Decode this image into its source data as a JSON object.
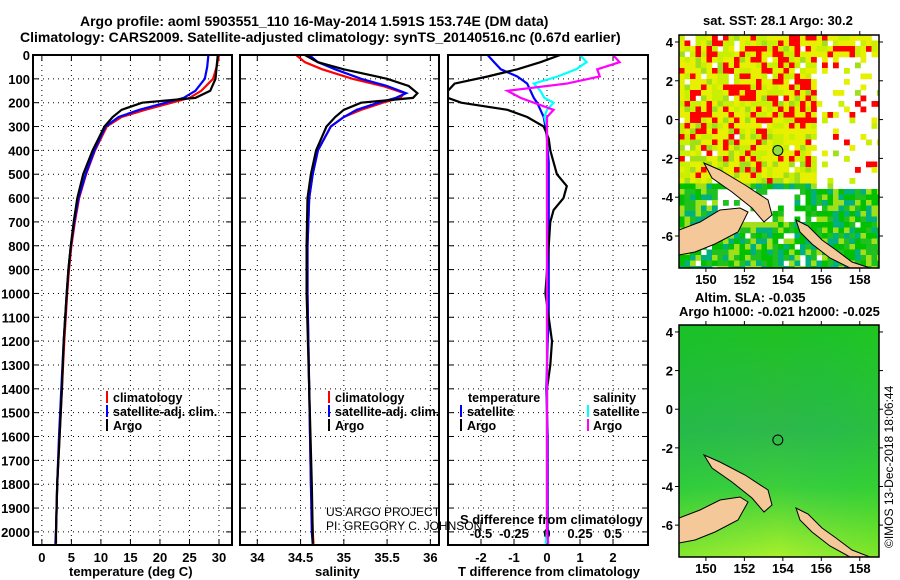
{
  "title_line1": "Argo profile: aoml 5903551_110 16-May-2014 1.591S 153.74E (DM data)",
  "title_line2": "Climatology: CARS2009. Satellite-adjusted climatology: synTS_20140516.nc (0.67d earlier)",
  "credit_project": "US ARGO PROJECT",
  "credit_pi": "PI: GREGORY C. JOHNSON",
  "imos_stamp": "©IMOS 13-Dec-2018 18:06:44",
  "colors": {
    "climatology": "#ff0000",
    "satellite": "#0000ff",
    "argo": "#000000",
    "sal_sat": "#00ffff",
    "sal_argo": "#ff00ff",
    "land": "#f5c89a"
  },
  "chart_data": [
    {
      "type": "line",
      "name": "temperature",
      "xlabel": "temperature (deg C)",
      "ylabel": "depth",
      "xlim": [
        -1.5,
        32.2
      ],
      "ylim": [
        2055,
        0
      ],
      "xticks": [
        0,
        5,
        10,
        15,
        20,
        25,
        30
      ],
      "yticks": [
        0,
        100,
        200,
        300,
        400,
        500,
        600,
        700,
        800,
        900,
        1000,
        1100,
        1200,
        1300,
        1400,
        1500,
        1600,
        1700,
        1800,
        1900,
        2000
      ],
      "legend": [
        "climatology",
        "satellite-adj. clim.",
        "Argo"
      ],
      "depth": [
        0,
        50,
        100,
        150,
        180,
        200,
        230,
        260,
        300,
        400,
        500,
        600,
        700,
        800,
        900,
        1000,
        1200,
        1400,
        1600,
        1800,
        2000,
        2050
      ],
      "series": [
        {
          "name": "climatology",
          "values": [
            30.0,
            29.6,
            29.0,
            27.0,
            25.0,
            22.0,
            17.5,
            13.5,
            11.0,
            9.0,
            7.5,
            6.3,
            5.6,
            5.0,
            4.6,
            4.3,
            3.8,
            3.4,
            3.0,
            2.6,
            2.4,
            2.3
          ]
        },
        {
          "name": "satellite-adj. clim.",
          "values": [
            28.2,
            28.0,
            27.6,
            26.0,
            24.0,
            21.0,
            16.5,
            13.0,
            10.8,
            8.9,
            7.4,
            6.2,
            5.5,
            4.9,
            4.5,
            4.2,
            3.7,
            3.3,
            2.9,
            2.6,
            2.4,
            2.3
          ]
        },
        {
          "name": "Argo",
          "values": [
            29.8,
            29.6,
            29.4,
            28.5,
            26.0,
            17.0,
            13.5,
            12.0,
            10.6,
            8.6,
            7.0,
            6.0,
            5.4,
            4.9,
            4.5,
            4.2,
            3.7,
            3.4,
            3.0,
            2.6,
            2.4,
            2.4
          ]
        }
      ]
    },
    {
      "type": "line",
      "name": "salinity",
      "xlabel": "salinity",
      "xlim": [
        33.8,
        36.1
      ],
      "ylim": [
        2055,
        0
      ],
      "xticks": [
        34,
        34.5,
        35,
        35.5,
        36
      ],
      "legend": [
        "climatology",
        "satellite-adj. clim.",
        "Argo"
      ],
      "depth": [
        0,
        30,
        60,
        100,
        130,
        160,
        180,
        200,
        230,
        260,
        300,
        400,
        500,
        600,
        800,
        1000,
        1400,
        1800,
        2000,
        2050
      ],
      "series": [
        {
          "name": "climatology",
          "values": [
            34.45,
            34.55,
            34.75,
            35.1,
            35.45,
            35.7,
            35.65,
            35.45,
            35.2,
            35.0,
            34.85,
            34.7,
            34.64,
            34.6,
            34.58,
            34.58,
            34.6,
            34.62,
            34.64,
            34.65
          ]
        },
        {
          "name": "satellite-adj. clim.",
          "values": [
            34.6,
            34.7,
            34.9,
            35.2,
            35.5,
            35.72,
            35.6,
            35.4,
            35.15,
            35.0,
            34.85,
            34.7,
            34.64,
            34.6,
            34.58,
            34.58,
            34.6,
            34.62,
            34.63,
            34.64
          ]
        },
        {
          "name": "Argo",
          "values": [
            34.55,
            34.7,
            35.0,
            35.5,
            35.75,
            35.85,
            35.8,
            35.2,
            35.0,
            34.9,
            34.8,
            34.68,
            34.62,
            34.58,
            34.57,
            34.57,
            34.6,
            34.63,
            34.64,
            34.64
          ]
        }
      ]
    },
    {
      "type": "line",
      "name": "difference",
      "xlabel": "T difference from climatology",
      "xlabel_top": "S difference from climatology",
      "xlim": [
        -3,
        3.06
      ],
      "ylim": [
        2055,
        0
      ],
      "xticks": [
        -2,
        -1,
        0,
        1,
        2
      ],
      "xticks_s": [
        -0.5,
        -0.25,
        0,
        0.25,
        0.5
      ],
      "xticklabels_s": [
        "-0.5",
        "-0.25",
        "0",
        "0.25",
        "0.5"
      ],
      "legend_temperature_title": "temperature",
      "legend_salinity_title": "salinity",
      "legend": [
        "satellite",
        "Argo",
        "satellite",
        "Argo"
      ],
      "depth": [
        0,
        30,
        60,
        90,
        120,
        150,
        180,
        200,
        230,
        260,
        300,
        350,
        400,
        450,
        500,
        550,
        600,
        650,
        700,
        800,
        900,
        1000,
        1100,
        1200,
        1300,
        1400,
        1600,
        1800,
        2000,
        2050
      ],
      "series": [
        {
          "name": "T satellite",
          "quantity": "T",
          "values": [
            -1.8,
            -1.6,
            -1.4,
            -0.9,
            -0.6,
            -0.5,
            -0.4,
            -0.3,
            -0.2,
            -0.1,
            -0.05,
            0.0,
            0.02,
            0.05,
            0.05,
            0.05,
            0.05,
            0.05,
            0.05,
            0.05,
            0.05,
            0.05,
            0.05,
            0.02,
            0.0,
            -0.02,
            0.02,
            0.02,
            0.02,
            0.02
          ]
        },
        {
          "name": "T Argo",
          "quantity": "T",
          "values": [
            0.4,
            -0.2,
            -0.9,
            -1.8,
            -2.8,
            -3.0,
            -3.0,
            -2.6,
            -1.2,
            -0.6,
            -0.1,
            0.05,
            0.1,
            0.2,
            0.3,
            0.6,
            0.5,
            0.2,
            0.1,
            0.05,
            0.0,
            -0.05,
            0.05,
            0.15,
            0.1,
            0.0,
            0.0,
            0.0,
            0.0,
            0.0
          ]
        },
        {
          "name": "S satellite",
          "quantity": "S",
          "values": [
            0.25,
            0.3,
            0.22,
            0.08,
            -0.1,
            -0.05,
            -0.02,
            0.05,
            0.0,
            -0.02,
            0.0,
            0.0,
            0.0,
            0.0,
            0.0,
            0.0,
            0.0,
            0.0,
            0.0,
            0.0,
            0.0,
            0.0,
            0.0,
            0.0,
            0.0,
            0.0,
            0.0,
            0.0,
            0.0,
            -0.01
          ]
        },
        {
          "name": "S Argo",
          "quantity": "S",
          "values": [
            0.5,
            0.55,
            0.38,
            0.4,
            0.15,
            -0.3,
            -0.2,
            -0.1,
            0.05,
            0.0,
            0.0,
            0.0,
            0.0,
            0.0,
            0.0,
            0.0,
            0.0,
            0.0,
            0.0,
            0.0,
            0.0,
            0.0,
            0.0,
            0.0,
            0.0,
            0.0,
            0.0,
            0.0,
            0.0,
            0.01
          ]
        }
      ]
    },
    {
      "type": "heatmap",
      "name": "sst-map",
      "title": "sat. SST: 28.1 Argo: 30.2",
      "xlim": [
        148.6,
        159.0
      ],
      "ylim": [
        -7.65,
        4.36
      ],
      "xticks": [
        150,
        152,
        154,
        156,
        158
      ],
      "yticks": [
        4,
        2,
        0,
        -2,
        -4,
        -6
      ],
      "float_position": {
        "lon": 153.74,
        "lat": -1.591
      }
    },
    {
      "type": "heatmap",
      "name": "sla-map",
      "title": "Altim. SLA: -0.035",
      "subtitle": "Argo h1000: -0.021 h2000: -0.025",
      "xlim": [
        148.6,
        159.0
      ],
      "ylim": [
        -7.65,
        4.36
      ],
      "xticks": [
        150,
        152,
        154,
        156,
        158
      ],
      "yticks": [
        4,
        2,
        0,
        -2,
        -4,
        -6
      ],
      "float_position": {
        "lon": 153.74,
        "lat": -1.591
      }
    }
  ]
}
